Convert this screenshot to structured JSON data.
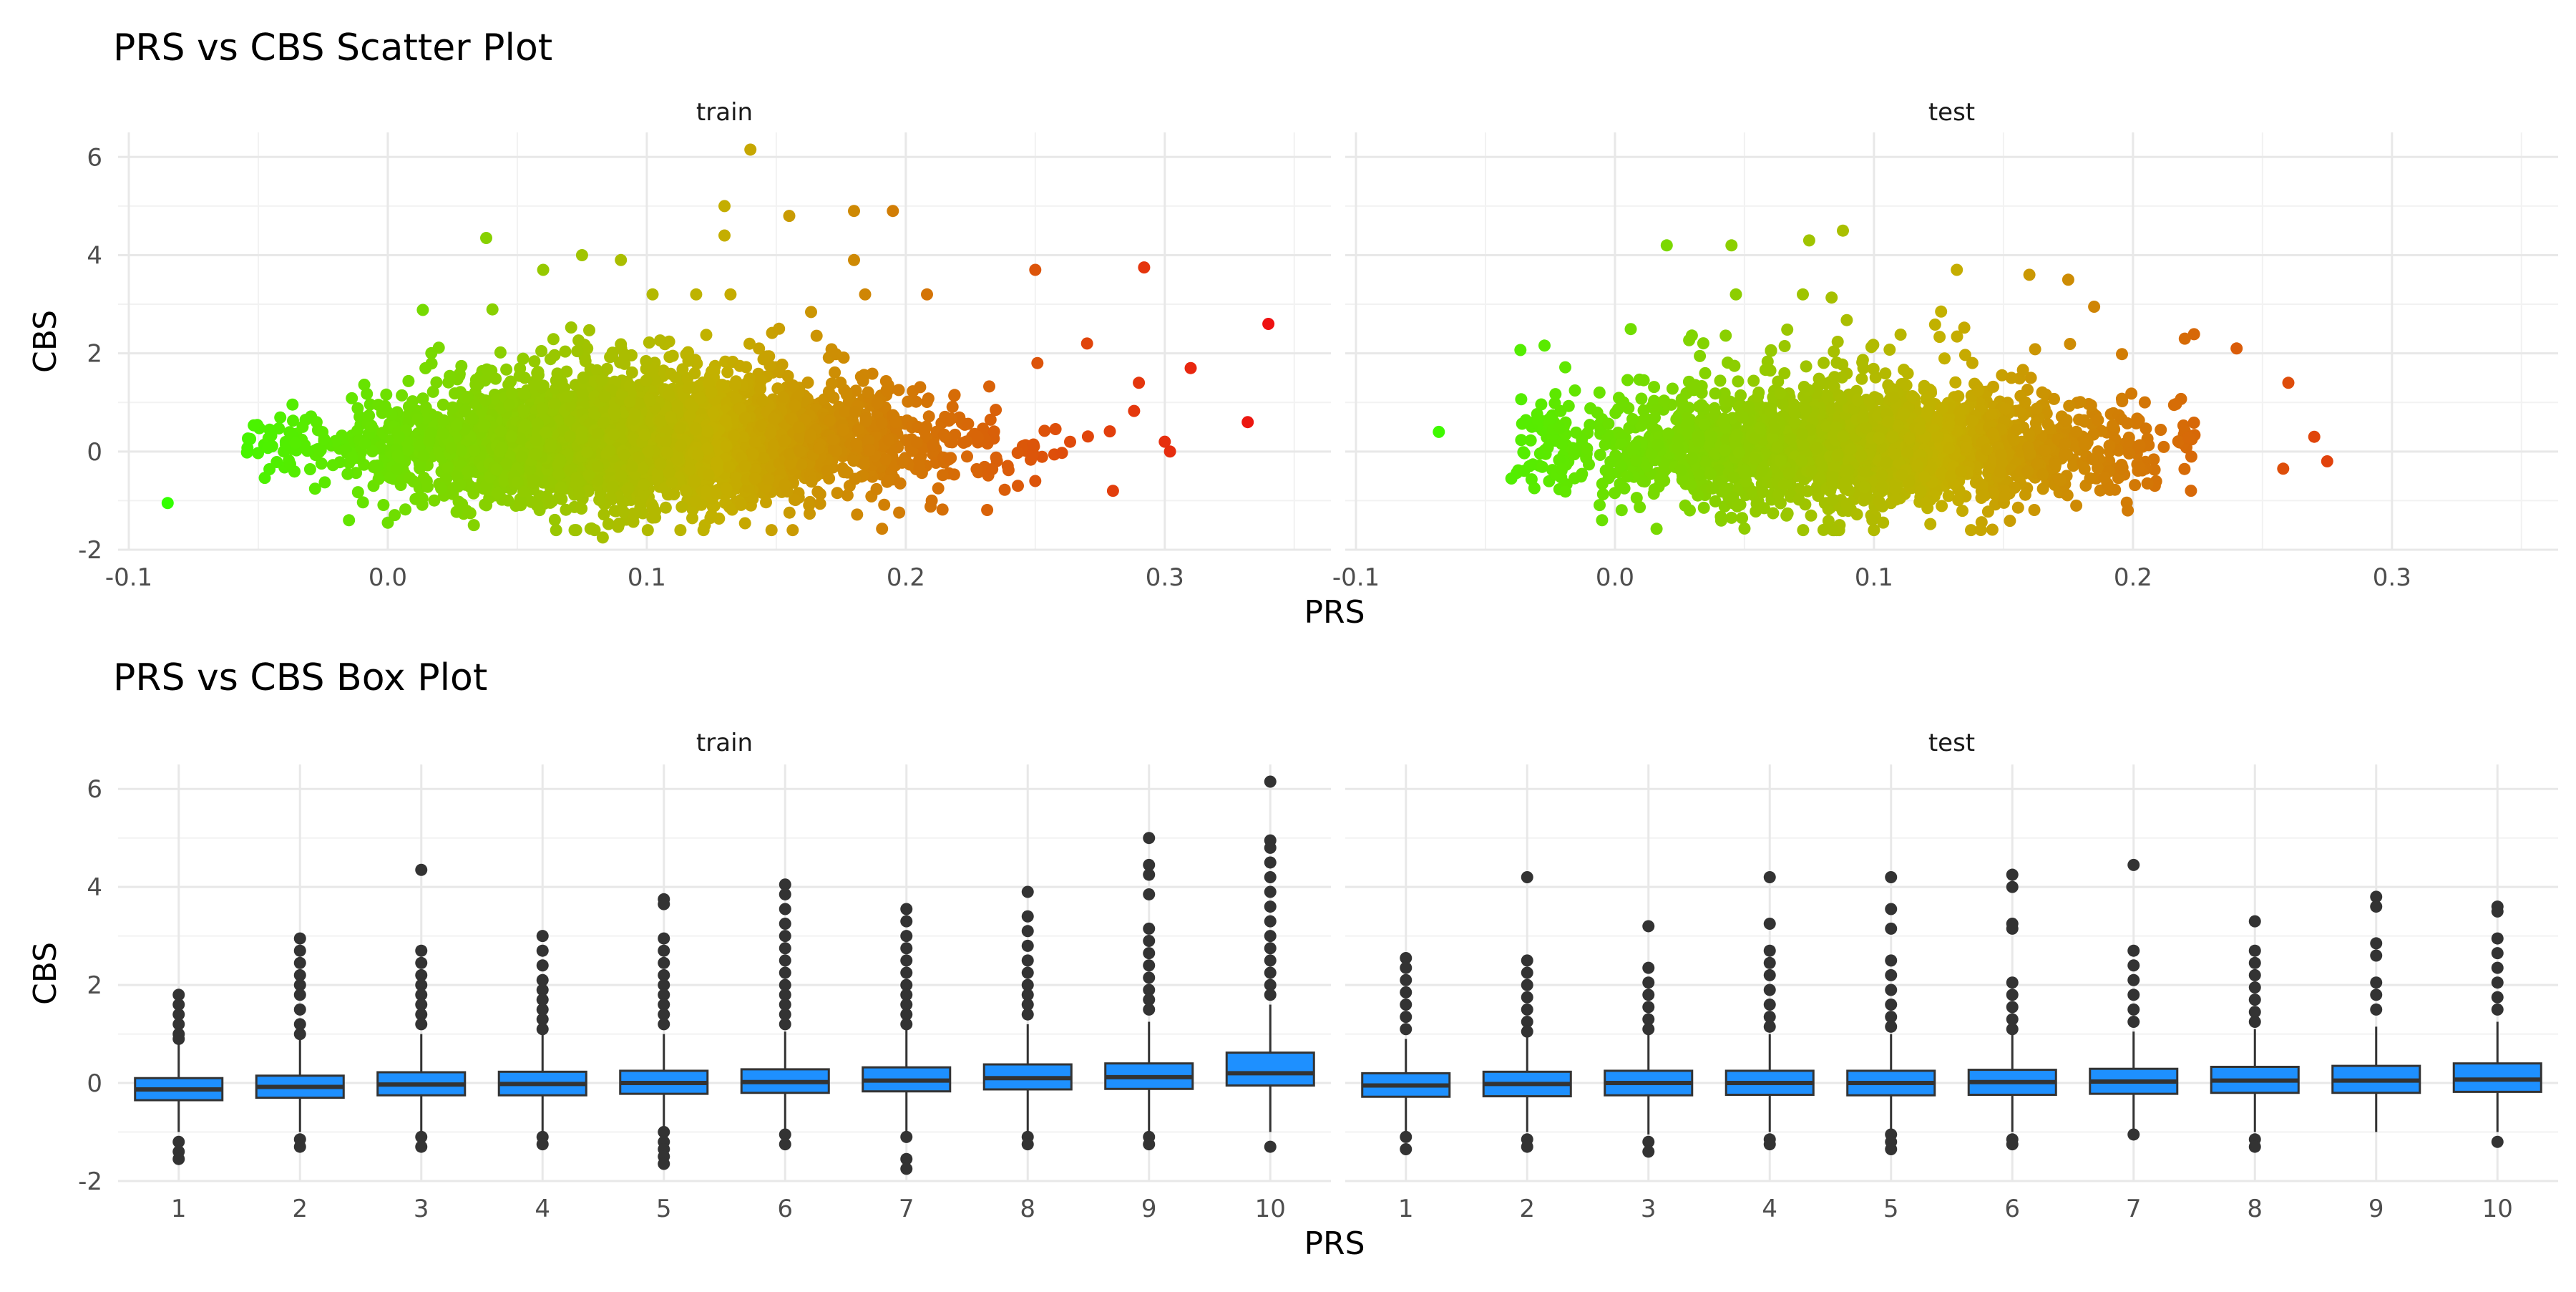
{
  "figure": {
    "scatter_title": "PRS vs CBS Scatter Plot",
    "box_title": "PRS vs CBS Box Plot",
    "x_axis_label": "PRS",
    "y_axis_label": "CBS",
    "facet_labels": [
      "train",
      "test"
    ]
  },
  "chart_data": [
    {
      "type": "scatter",
      "title": "PRS vs CBS Scatter Plot",
      "xlabel": "PRS",
      "ylabel": "CBS",
      "facets": [
        "train",
        "test"
      ],
      "xlim": [
        -0.1,
        0.36
      ],
      "ylim": [
        -2,
        6.5
      ],
      "x_ticks": [
        "-0.1",
        "0.0",
        "0.1",
        "0.2",
        "0.3"
      ],
      "y_ticks": [
        "-2",
        "0",
        "2",
        "4",
        "6"
      ],
      "grid": true,
      "color_scale": {
        "low": "#33ff00",
        "mid": "#c4b000",
        "high": "#ee1111"
      },
      "series": [
        {
          "name": "train",
          "x_range": [
            -0.085,
            0.34
          ],
          "center": {
            "x": 0.1,
            "y": 0.2
          },
          "outliers": [
            {
              "x": -0.085,
              "y": -1.05
            },
            {
              "x": 0.038,
              "y": 4.35
            },
            {
              "x": 0.14,
              "y": 6.15
            },
            {
              "x": 0.13,
              "y": 5.0
            },
            {
              "x": 0.13,
              "y": 4.4
            },
            {
              "x": 0.09,
              "y": 3.9
            },
            {
              "x": 0.075,
              "y": 4.0
            },
            {
              "x": 0.06,
              "y": 3.7
            },
            {
              "x": 0.155,
              "y": 4.8
            },
            {
              "x": 0.18,
              "y": 4.9
            },
            {
              "x": 0.195,
              "y": 4.9
            },
            {
              "x": 0.18,
              "y": 3.9
            },
            {
              "x": 0.25,
              "y": 3.7
            },
            {
              "x": 0.292,
              "y": 3.75
            },
            {
              "x": 0.34,
              "y": 2.6
            },
            {
              "x": 0.332,
              "y": 0.6
            },
            {
              "x": 0.3,
              "y": 0.2
            },
            {
              "x": 0.302,
              "y": 0.0
            },
            {
              "x": 0.28,
              "y": -0.8
            },
            {
              "x": 0.25,
              "y": -0.6
            },
            {
              "x": 0.27,
              "y": 2.2
            },
            {
              "x": 0.31,
              "y": 1.7
            },
            {
              "x": 0.29,
              "y": 1.4
            },
            {
              "x": 0.083,
              "y": -1.75
            },
            {
              "x": 0.065,
              "y": -1.6
            },
            {
              "x": 0.0,
              "y": -1.45
            },
            {
              "x": -0.015,
              "y": -1.4
            },
            {
              "x": 0.21,
              "y": -1.0
            },
            {
              "x": 0.125,
              "y": -1.3
            }
          ]
        },
        {
          "name": "test",
          "x_range": [
            -0.068,
            0.275
          ],
          "center": {
            "x": 0.09,
            "y": 0.1
          },
          "outliers": [
            {
              "x": -0.068,
              "y": 0.4
            },
            {
              "x": 0.02,
              "y": 4.2
            },
            {
              "x": 0.045,
              "y": 4.2
            },
            {
              "x": 0.075,
              "y": 4.3
            },
            {
              "x": 0.088,
              "y": 4.5
            },
            {
              "x": 0.132,
              "y": 3.7
            },
            {
              "x": 0.16,
              "y": 3.6
            },
            {
              "x": 0.175,
              "y": 3.5
            },
            {
              "x": 0.185,
              "y": 2.95
            },
            {
              "x": 0.22,
              "y": 2.3
            },
            {
              "x": 0.24,
              "y": 2.1
            },
            {
              "x": 0.26,
              "y": 1.4
            },
            {
              "x": 0.27,
              "y": 0.3
            },
            {
              "x": 0.275,
              "y": -0.2
            },
            {
              "x": 0.258,
              "y": -0.35
            },
            {
              "x": 0.198,
              "y": -1.2
            },
            {
              "x": -0.005,
              "y": -1.4
            },
            {
              "x": 0.045,
              "y": -1.35
            },
            {
              "x": -0.04,
              "y": -0.55
            },
            {
              "x": 0.12,
              "y": -1.05
            }
          ]
        }
      ]
    },
    {
      "type": "box",
      "title": "PRS vs CBS Box Plot",
      "xlabel": "PRS",
      "ylabel": "CBS",
      "facets": [
        "train",
        "test"
      ],
      "categories": [
        "1",
        "2",
        "3",
        "4",
        "5",
        "6",
        "7",
        "8",
        "9",
        "10"
      ],
      "ylim": [
        -2,
        6.5
      ],
      "y_ticks": [
        "-2",
        "0",
        "2",
        "4",
        "6"
      ],
      "box_color": "#1e90ff",
      "series": [
        {
          "name": "train",
          "boxes": [
            {
              "q1": -0.35,
              "median": -0.13,
              "q3": 0.1,
              "whisker_low": -1.0,
              "whisker_high": 0.8,
              "outliers": [
                1.8,
                1.6,
                1.4,
                1.2,
                1.0,
                0.9,
                -1.2,
                -1.4,
                -1.55
              ]
            },
            {
              "q1": -0.3,
              "median": -0.08,
              "q3": 0.15,
              "whisker_low": -1.0,
              "whisker_high": 0.9,
              "outliers": [
                2.95,
                2.7,
                2.45,
                2.2,
                2.0,
                1.8,
                1.5,
                1.2,
                1.0,
                -1.15,
                -1.3
              ]
            },
            {
              "q1": -0.25,
              "median": -0.03,
              "q3": 0.22,
              "whisker_low": -1.0,
              "whisker_high": 1.0,
              "outliers": [
                4.35,
                2.7,
                2.45,
                2.2,
                2.0,
                1.8,
                1.6,
                1.4,
                1.2,
                -1.1,
                -1.3
              ]
            },
            {
              "q1": -0.25,
              "median": -0.02,
              "q3": 0.23,
              "whisker_low": -1.0,
              "whisker_high": 1.0,
              "outliers": [
                3.0,
                2.7,
                2.4,
                2.1,
                1.9,
                1.7,
                1.5,
                1.3,
                1.1,
                -1.1,
                -1.25
              ]
            },
            {
              "q1": -0.22,
              "median": 0.0,
              "q3": 0.25,
              "whisker_low": -1.0,
              "whisker_high": 1.0,
              "outliers": [
                3.75,
                3.65,
                2.95,
                2.7,
                2.45,
                2.2,
                2.0,
                1.8,
                1.6,
                1.4,
                1.2,
                -1.0,
                -1.2,
                -1.35,
                -1.5,
                -1.65
              ]
            },
            {
              "q1": -0.2,
              "median": 0.02,
              "q3": 0.28,
              "whisker_low": -1.0,
              "whisker_high": 1.05,
              "outliers": [
                4.05,
                3.85,
                3.55,
                3.25,
                3.0,
                2.75,
                2.5,
                2.25,
                2.0,
                1.8,
                1.6,
                1.4,
                1.2,
                -1.05,
                -1.25
              ]
            },
            {
              "q1": -0.17,
              "median": 0.05,
              "q3": 0.32,
              "whisker_low": -1.0,
              "whisker_high": 1.1,
              "outliers": [
                3.55,
                3.3,
                3.0,
                2.75,
                2.5,
                2.25,
                2.0,
                1.8,
                1.6,
                1.4,
                1.2,
                -1.1,
                -1.55,
                -1.75
              ]
            },
            {
              "q1": -0.13,
              "median": 0.1,
              "q3": 0.38,
              "whisker_low": -1.0,
              "whisker_high": 1.2,
              "outliers": [
                3.9,
                3.4,
                3.1,
                2.8,
                2.5,
                2.25,
                2.0,
                1.8,
                1.6,
                1.4,
                -1.1,
                -1.25
              ]
            },
            {
              "q1": -0.12,
              "median": 0.12,
              "q3": 0.4,
              "whisker_low": -1.0,
              "whisker_high": 1.25,
              "outliers": [
                5.0,
                4.45,
                4.25,
                3.85,
                3.15,
                2.9,
                2.65,
                2.4,
                2.15,
                1.9,
                1.7,
                1.5,
                -1.1,
                -1.25
              ]
            },
            {
              "q1": -0.05,
              "median": 0.2,
              "q3": 0.62,
              "whisker_low": -1.0,
              "whisker_high": 1.6,
              "outliers": [
                6.15,
                4.95,
                4.8,
                4.5,
                4.2,
                3.9,
                3.6,
                3.3,
                3.0,
                2.75,
                2.5,
                2.25,
                2.0,
                1.8,
                -1.3
              ]
            }
          ]
        },
        {
          "name": "test",
          "boxes": [
            {
              "q1": -0.28,
              "median": -0.05,
              "q3": 0.2,
              "whisker_low": -1.0,
              "whisker_high": 0.9,
              "outliers": [
                2.55,
                2.35,
                2.1,
                1.85,
                1.6,
                1.35,
                1.1,
                -1.1,
                -1.35
              ]
            },
            {
              "q1": -0.27,
              "median": -0.02,
              "q3": 0.23,
              "whisker_low": -1.0,
              "whisker_high": 1.0,
              "outliers": [
                4.2,
                2.5,
                2.25,
                2.0,
                1.75,
                1.5,
                1.25,
                1.05,
                -1.15,
                -1.3
              ]
            },
            {
              "q1": -0.25,
              "median": 0.0,
              "q3": 0.25,
              "whisker_low": -1.05,
              "whisker_high": 1.0,
              "outliers": [
                3.2,
                2.35,
                2.05,
                1.8,
                1.55,
                1.3,
                1.1,
                -1.2,
                -1.4
              ]
            },
            {
              "q1": -0.24,
              "median": 0.0,
              "q3": 0.25,
              "whisker_low": -1.0,
              "whisker_high": 1.0,
              "outliers": [
                4.2,
                3.25,
                2.7,
                2.45,
                2.2,
                1.9,
                1.6,
                1.35,
                1.15,
                -1.15,
                -1.25
              ]
            },
            {
              "q1": -0.25,
              "median": 0.0,
              "q3": 0.25,
              "whisker_low": -1.0,
              "whisker_high": 1.0,
              "outliers": [
                4.2,
                3.55,
                3.15,
                2.5,
                2.2,
                1.9,
                1.6,
                1.35,
                1.15,
                -1.05,
                -1.2,
                -1.35
              ]
            },
            {
              "q1": -0.24,
              "median": 0.02,
              "q3": 0.27,
              "whisker_low": -1.0,
              "whisker_high": 1.05,
              "outliers": [
                4.25,
                4.0,
                3.25,
                3.15,
                2.05,
                1.8,
                1.55,
                1.3,
                1.1,
                -1.15,
                -1.25
              ]
            },
            {
              "q1": -0.22,
              "median": 0.03,
              "q3": 0.29,
              "whisker_low": -1.0,
              "whisker_high": 1.05,
              "outliers": [
                4.45,
                2.7,
                2.4,
                2.1,
                1.8,
                1.5,
                1.25,
                -1.05
              ]
            },
            {
              "q1": -0.2,
              "median": 0.05,
              "q3": 0.33,
              "whisker_low": -1.0,
              "whisker_high": 1.1,
              "outliers": [
                3.3,
                2.7,
                2.45,
                2.2,
                1.95,
                1.7,
                1.45,
                1.25,
                -1.15,
                -1.3
              ]
            },
            {
              "q1": -0.2,
              "median": 0.05,
              "q3": 0.35,
              "whisker_low": -1.0,
              "whisker_high": 1.15,
              "outliers": [
                3.8,
                3.6,
                2.85,
                2.6,
                2.05,
                1.8,
                1.5
              ]
            },
            {
              "q1": -0.18,
              "median": 0.07,
              "q3": 0.4,
              "whisker_low": -1.0,
              "whisker_high": 1.25,
              "outliers": [
                3.6,
                3.5,
                2.95,
                2.65,
                2.35,
                2.05,
                1.75,
                1.5,
                -1.2
              ]
            }
          ]
        }
      ]
    }
  ]
}
